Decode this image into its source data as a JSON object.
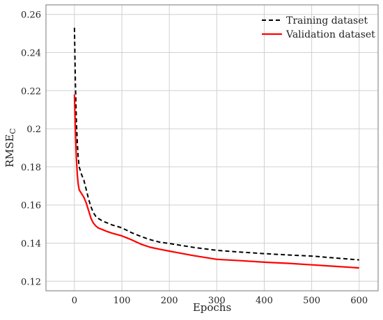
{
  "chart_data": {
    "type": "line",
    "xlabel": "Epochs",
    "ylabel": "RMSE",
    "ylabel_subscript": "C",
    "xlim": [
      -60,
      640
    ],
    "ylim": [
      0.115,
      0.265
    ],
    "x_ticks": [
      0,
      100,
      200,
      300,
      400,
      500,
      600
    ],
    "y_ticks": [
      0.12,
      0.14,
      0.16,
      0.18,
      0.2,
      0.22,
      0.24,
      0.26
    ],
    "y_tick_labels": [
      "0.12",
      "0.14",
      "0.16",
      "0.18",
      "0.2",
      "0.22",
      "0.24",
      "0.26"
    ],
    "grid": true,
    "legend_position": "top-right",
    "series": [
      {
        "name": "Training dataset",
        "color": "#000000",
        "style": "dashed",
        "x": [
          0,
          2,
          4,
          6,
          8,
          10,
          15,
          20,
          25,
          30,
          35,
          40,
          45,
          50,
          60,
          70,
          80,
          90,
          100,
          110,
          120,
          140,
          160,
          180,
          200,
          250,
          300,
          350,
          400,
          450,
          500,
          550,
          600
        ],
        "y": [
          0.253,
          0.225,
          0.205,
          0.193,
          0.185,
          0.18,
          0.176,
          0.173,
          0.168,
          0.163,
          0.159,
          0.156,
          0.154,
          0.153,
          0.1515,
          0.1505,
          0.1495,
          0.1488,
          0.148,
          0.1468,
          0.1455,
          0.1435,
          0.1418,
          0.1405,
          0.1398,
          0.1378,
          0.1362,
          0.1353,
          0.1345,
          0.1338,
          0.1332,
          0.1322,
          0.1312
        ]
      },
      {
        "name": "Validation dataset",
        "color": "#ff0000",
        "style": "solid",
        "x": [
          0,
          2,
          4,
          6,
          8,
          10,
          15,
          20,
          25,
          30,
          35,
          40,
          45,
          50,
          60,
          70,
          80,
          90,
          100,
          110,
          120,
          140,
          160,
          180,
          200,
          250,
          300,
          350,
          400,
          450,
          500,
          550,
          600
        ],
        "y": [
          0.218,
          0.2,
          0.185,
          0.176,
          0.171,
          0.168,
          0.166,
          0.164,
          0.161,
          0.157,
          0.153,
          0.1505,
          0.149,
          0.148,
          0.147,
          0.146,
          0.1452,
          0.1445,
          0.1438,
          0.1428,
          0.1418,
          0.1395,
          0.1378,
          0.1368,
          0.1358,
          0.1335,
          0.1315,
          0.1308,
          0.13,
          0.1294,
          0.1286,
          0.1278,
          0.127
        ]
      }
    ]
  }
}
